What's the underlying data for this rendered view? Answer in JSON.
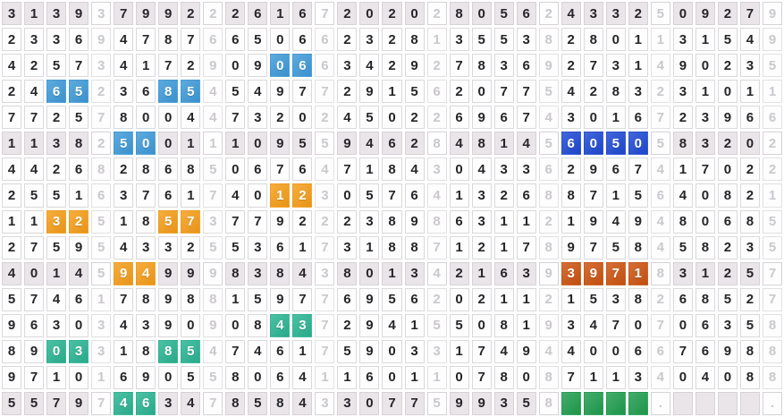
{
  "table": {
    "columns": 35,
    "rows": [
      [
        "3",
        "1",
        "3",
        "9",
        "3",
        "7",
        "9",
        "9",
        "2",
        "2",
        "2",
        "6",
        "1",
        "6",
        "7",
        "2",
        "0",
        "2",
        "0",
        "2",
        "8",
        "0",
        "5",
        "6",
        "2",
        "4",
        "3",
        "3",
        "2",
        "5",
        "0",
        "9",
        "2",
        "7",
        "9"
      ],
      [
        "2",
        "3",
        "3",
        "6",
        "9",
        "4",
        "7",
        "8",
        "7",
        "6",
        "6",
        "5",
        "0",
        "6",
        "6",
        "2",
        "3",
        "2",
        "8",
        "1",
        "3",
        "5",
        "5",
        "3",
        "8",
        "2",
        "8",
        "0",
        "1",
        "1",
        "3",
        "1",
        "5",
        "4",
        "9"
      ],
      [
        "4",
        "2",
        "5",
        "7",
        "3",
        "4",
        "1",
        "7",
        "2",
        "9",
        "0",
        "9",
        "0",
        "6",
        "6",
        "3",
        "4",
        "2",
        "9",
        "2",
        "7",
        "8",
        "3",
        "6",
        "9",
        "2",
        "7",
        "3",
        "1",
        "4",
        "9",
        "0",
        "2",
        "3",
        "5"
      ],
      [
        "2",
        "4",
        "6",
        "5",
        "2",
        "3",
        "6",
        "8",
        "5",
        "4",
        "5",
        "4",
        "9",
        "7",
        "7",
        "2",
        "9",
        "1",
        "5",
        "6",
        "2",
        "0",
        "7",
        "7",
        "5",
        "4",
        "2",
        "8",
        "3",
        "2",
        "3",
        "1",
        "0",
        "1",
        "1"
      ],
      [
        "7",
        "7",
        "2",
        "5",
        "7",
        "8",
        "0",
        "0",
        "4",
        "4",
        "7",
        "3",
        "2",
        "0",
        "2",
        "4",
        "5",
        "0",
        "2",
        "2",
        "6",
        "9",
        "6",
        "7",
        "4",
        "3",
        "0",
        "1",
        "6",
        "7",
        "2",
        "3",
        "9",
        "6",
        "6"
      ],
      [
        "1",
        "1",
        "3",
        "8",
        "2",
        "5",
        "0",
        "0",
        "1",
        "1",
        "1",
        "0",
        "9",
        "5",
        "5",
        "9",
        "4",
        "6",
        "2",
        "8",
        "4",
        "8",
        "1",
        "4",
        "5",
        "6",
        "0",
        "5",
        "0",
        "5",
        "8",
        "3",
        "2",
        "0",
        "2"
      ],
      [
        "4",
        "4",
        "2",
        "6",
        "8",
        "2",
        "8",
        "6",
        "8",
        "5",
        "0",
        "6",
        "7",
        "6",
        "4",
        "7",
        "1",
        "8",
        "4",
        "3",
        "0",
        "4",
        "3",
        "3",
        "6",
        "2",
        "9",
        "6",
        "7",
        "4",
        "1",
        "7",
        "0",
        "2",
        "2"
      ],
      [
        "2",
        "5",
        "5",
        "1",
        "6",
        "3",
        "7",
        "6",
        "1",
        "7",
        "4",
        "0",
        "1",
        "2",
        "3",
        "0",
        "5",
        "7",
        "6",
        "4",
        "1",
        "3",
        "2",
        "6",
        "8",
        "8",
        "7",
        "1",
        "5",
        "6",
        "4",
        "0",
        "8",
        "2",
        "1"
      ],
      [
        "1",
        "1",
        "3",
        "2",
        "5",
        "1",
        "8",
        "5",
        "7",
        "3",
        "7",
        "7",
        "9",
        "2",
        "2",
        "2",
        "3",
        "8",
        "9",
        "8",
        "6",
        "3",
        "1",
        "1",
        "2",
        "1",
        "9",
        "4",
        "9",
        "4",
        "8",
        "0",
        "6",
        "8",
        "5"
      ],
      [
        "2",
        "7",
        "5",
        "9",
        "5",
        "4",
        "3",
        "3",
        "2",
        "5",
        "5",
        "3",
        "6",
        "1",
        "7",
        "3",
        "1",
        "8",
        "8",
        "7",
        "1",
        "2",
        "1",
        "7",
        "8",
        "9",
        "7",
        "5",
        "8",
        "4",
        "5",
        "8",
        "2",
        "3",
        "5"
      ],
      [
        "4",
        "0",
        "1",
        "4",
        "5",
        "9",
        "4",
        "9",
        "9",
        "9",
        "8",
        "3",
        "8",
        "4",
        "3",
        "8",
        "0",
        "1",
        "3",
        "4",
        "2",
        "1",
        "6",
        "3",
        "9",
        "3",
        "9",
        "7",
        "1",
        "8",
        "3",
        "1",
        "2",
        "5",
        "7"
      ],
      [
        "5",
        "7",
        "4",
        "6",
        "1",
        "7",
        "8",
        "9",
        "8",
        "8",
        "1",
        "5",
        "9",
        "7",
        "7",
        "6",
        "9",
        "5",
        "6",
        "2",
        "0",
        "2",
        "1",
        "1",
        "2",
        "1",
        "5",
        "3",
        "8",
        "2",
        "6",
        "8",
        "5",
        "2",
        "7"
      ],
      [
        "9",
        "6",
        "3",
        "0",
        "3",
        "4",
        "3",
        "9",
        "0",
        "9",
        "0",
        "8",
        "4",
        "3",
        "7",
        "2",
        "9",
        "4",
        "1",
        "5",
        "5",
        "0",
        "8",
        "1",
        "9",
        "3",
        "4",
        "7",
        "0",
        "7",
        "0",
        "6",
        "3",
        "5",
        "8"
      ],
      [
        "8",
        "9",
        "0",
        "3",
        "3",
        "1",
        "8",
        "8",
        "5",
        "4",
        "7",
        "4",
        "6",
        "1",
        "7",
        "5",
        "9",
        "0",
        "3",
        "3",
        "1",
        "7",
        "4",
        "9",
        "4",
        "4",
        "0",
        "0",
        "6",
        "6",
        "7",
        "6",
        "9",
        "8",
        "8"
      ],
      [
        "9",
        "7",
        "1",
        "0",
        "1",
        "6",
        "9",
        "0",
        "5",
        "5",
        "8",
        "0",
        "6",
        "4",
        "1",
        "1",
        "6",
        "0",
        "1",
        "1",
        "0",
        "7",
        "8",
        "0",
        "8",
        "7",
        "1",
        "1",
        "3",
        "4",
        "0",
        "4",
        "0",
        "8",
        "8"
      ],
      [
        "5",
        "5",
        "7",
        "9",
        "7",
        "4",
        "6",
        "3",
        "4",
        "7",
        "8",
        "5",
        "8",
        "4",
        "3",
        "3",
        "0",
        "7",
        "7",
        "5",
        "9",
        "9",
        "3",
        "5",
        "8",
        "",
        "",
        "",
        "",
        ".",
        "",
        "",
        "",
        "",
        "."
      ]
    ],
    "shaded_rows": [
      0,
      5,
      10,
      15
    ],
    "muted_columns": [
      4,
      9,
      14,
      19,
      24,
      29,
      34
    ],
    "highlights": [
      {
        "row": 2,
        "cols": [
          12,
          13
        ],
        "style": "blue"
      },
      {
        "row": 3,
        "cols": [
          2,
          3
        ],
        "style": "blue"
      },
      {
        "row": 3,
        "cols": [
          7,
          8
        ],
        "style": "blue"
      },
      {
        "row": 5,
        "cols": [
          5,
          6
        ],
        "style": "blue"
      },
      {
        "row": 5,
        "cols": [
          25,
          26,
          27,
          28
        ],
        "style": "navy"
      },
      {
        "row": 7,
        "cols": [
          12,
          13
        ],
        "style": "orange"
      },
      {
        "row": 8,
        "cols": [
          2,
          3
        ],
        "style": "orange"
      },
      {
        "row": 8,
        "cols": [
          7,
          8
        ],
        "style": "orange"
      },
      {
        "row": 10,
        "cols": [
          5,
          6
        ],
        "style": "orange"
      },
      {
        "row": 10,
        "cols": [
          25,
          26,
          27,
          28
        ],
        "style": "rust"
      },
      {
        "row": 12,
        "cols": [
          12,
          13
        ],
        "style": "teal"
      },
      {
        "row": 13,
        "cols": [
          2,
          3
        ],
        "style": "teal"
      },
      {
        "row": 13,
        "cols": [
          7,
          8
        ],
        "style": "teal"
      },
      {
        "row": 15,
        "cols": [
          5,
          6
        ],
        "style": "teal"
      },
      {
        "row": 15,
        "cols": [
          25,
          26,
          27,
          28
        ],
        "style": "green"
      }
    ],
    "colors": {
      "blue": "#3e9ad8",
      "navy": "#1e49d3",
      "orange": "#f59d18",
      "rust": "#cc5310",
      "teal": "#2ab492",
      "green": "#1f9d4e",
      "digit": "#26262a",
      "muted_digit": "#cbc8cd",
      "shaded_row_bg": "#e9e5e9"
    }
  }
}
